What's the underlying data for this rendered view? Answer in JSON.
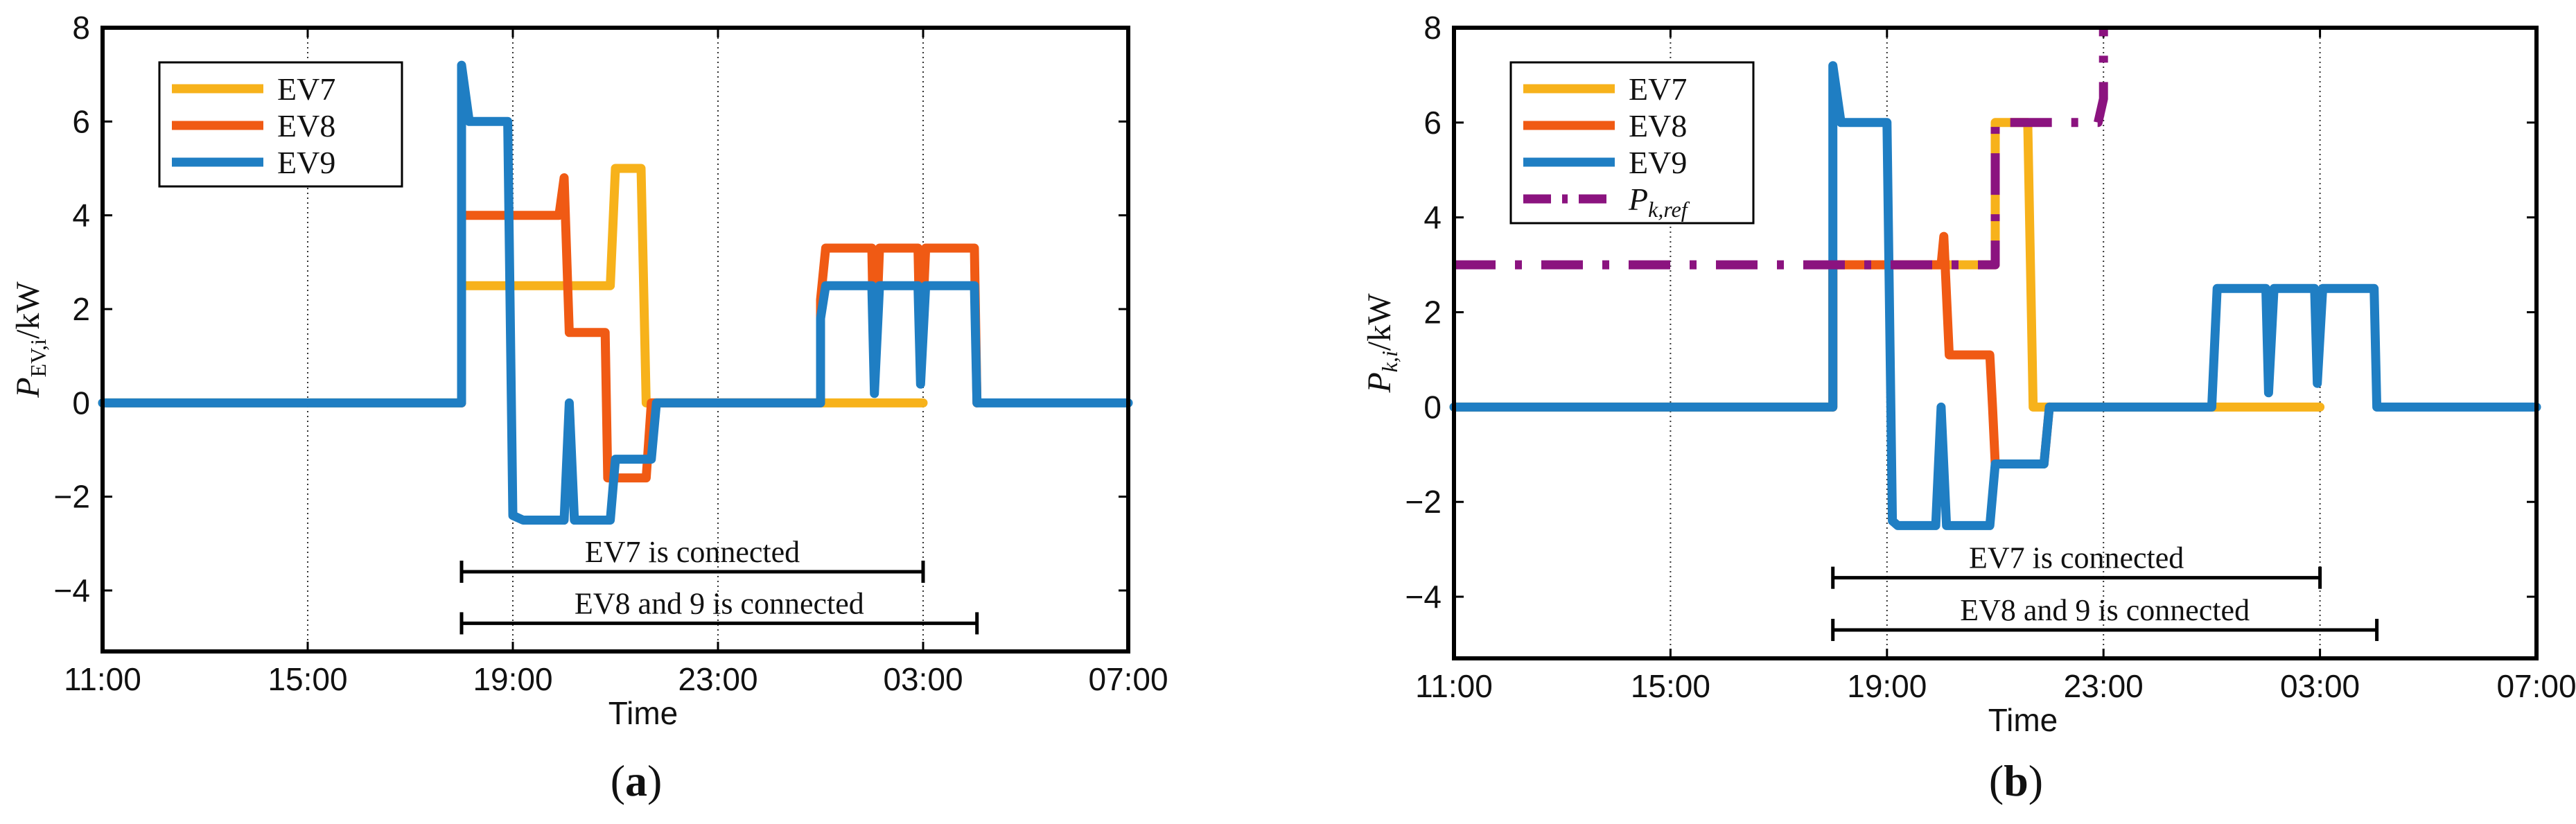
{
  "chart_data": [
    {
      "type": "line",
      "panel_label": "(a)",
      "panel_letter": "a",
      "xlabel": "Time",
      "ylabel_main": "P",
      "ylabel_sub": "EV,i",
      "ylabel_unit": "/kW",
      "xlim": [
        11,
        31
      ],
      "ylim": [
        -5.3,
        8
      ],
      "xticks": [
        11,
        15,
        19,
        23,
        27,
        31
      ],
      "xtick_labels": [
        "11:00",
        "15:00",
        "19:00",
        "23:00",
        "03:00",
        "07:00"
      ],
      "yticks": [
        -4,
        -2,
        0,
        2,
        4,
        6,
        8
      ],
      "ytick_labels": [
        "−4",
        "−2",
        "0",
        "2",
        "4",
        "6",
        "8"
      ],
      "grid_x": [
        15,
        19,
        23,
        27
      ],
      "legend_position": "top-left",
      "series": [
        {
          "name": "EV7",
          "color": "#F7B21B",
          "dash": "solid",
          "points": [
            [
              11,
              0
            ],
            [
              18,
              0
            ],
            [
              18,
              2.5
            ],
            [
              20.9,
              2.5
            ],
            [
              21.0,
              5.0
            ],
            [
              21.5,
              5.0
            ],
            [
              21.6,
              0
            ],
            [
              27.0,
              0
            ]
          ]
        },
        {
          "name": "EV8",
          "color": "#F05A14",
          "dash": "solid",
          "points": [
            [
              18,
              0
            ],
            [
              18,
              4.0
            ],
            [
              19.9,
              4.0
            ],
            [
              20.0,
              4.8
            ],
            [
              20.1,
              1.5
            ],
            [
              20.8,
              1.5
            ],
            [
              20.85,
              -1.6
            ],
            [
              21.6,
              -1.6
            ],
            [
              21.7,
              0
            ],
            [
              25.0,
              0
            ],
            [
              25.0,
              2.2
            ],
            [
              25.1,
              3.3
            ],
            [
              26.0,
              3.3
            ],
            [
              26.05,
              0.5
            ],
            [
              26.15,
              3.3
            ],
            [
              26.9,
              3.3
            ],
            [
              26.95,
              0.8
            ],
            [
              27.05,
              3.3
            ],
            [
              28.0,
              3.3
            ],
            [
              28.05,
              0
            ]
          ]
        },
        {
          "name": "EV9",
          "color": "#1F7EC3",
          "dash": "solid",
          "points": [
            [
              11,
              0
            ],
            [
              18,
              0
            ],
            [
              18,
              7.2
            ],
            [
              18.15,
              6.0
            ],
            [
              18.9,
              6.0
            ],
            [
              19.0,
              -2.4
            ],
            [
              19.2,
              -2.5
            ],
            [
              20.0,
              -2.5
            ],
            [
              20.1,
              0
            ],
            [
              20.2,
              -2.5
            ],
            [
              20.9,
              -2.5
            ],
            [
              21.0,
              -1.2
            ],
            [
              21.7,
              -1.2
            ],
            [
              21.8,
              0
            ],
            [
              25.0,
              0
            ],
            [
              25.0,
              1.8
            ],
            [
              25.1,
              2.5
            ],
            [
              26.0,
              2.5
            ],
            [
              26.05,
              0.2
            ],
            [
              26.15,
              2.5
            ],
            [
              26.9,
              2.5
            ],
            [
              26.95,
              0.4
            ],
            [
              27.05,
              2.5
            ],
            [
              28.0,
              2.5
            ],
            [
              28.05,
              0
            ],
            [
              31,
              0
            ]
          ]
        }
      ],
      "intervals": [
        {
          "label": "EV7 is connected",
          "start": 18,
          "end": 27,
          "y": -3.6
        },
        {
          "label": "EV8 and 9 is connected",
          "start": 18,
          "end": 28.05,
          "y": -4.7
        }
      ]
    },
    {
      "type": "line",
      "panel_label": "(b)",
      "panel_letter": "b",
      "xlabel": "Time",
      "ylabel_main": "P",
      "ylabel_sub": "k,i",
      "ylabel_unit": "/kW",
      "xlim": [
        11,
        31
      ],
      "ylim": [
        -5.3,
        8
      ],
      "xticks": [
        11,
        15,
        19,
        23,
        27,
        31
      ],
      "xtick_labels": [
        "11:00",
        "15:00",
        "19:00",
        "23:00",
        "03:00",
        "07:00"
      ],
      "yticks": [
        -4,
        -2,
        0,
        2,
        4,
        6,
        8
      ],
      "ytick_labels": [
        "−4",
        "−2",
        "0",
        "2",
        "4",
        "6",
        "8"
      ],
      "grid_x": [
        15,
        19,
        23,
        27
      ],
      "legend_position": "top-left",
      "series": [
        {
          "name": "EV7",
          "color": "#F7B21B",
          "dash": "solid",
          "points": [
            [
              11,
              0
            ],
            [
              18,
              0
            ],
            [
              18,
              3.0
            ],
            [
              21.0,
              3.0
            ],
            [
              21.0,
              6.0
            ],
            [
              21.6,
              6.0
            ],
            [
              21.7,
              0
            ],
            [
              27.0,
              0
            ]
          ]
        },
        {
          "name": "EV8",
          "color": "#F05A14",
          "dash": "solid",
          "points": [
            [
              18,
              0
            ],
            [
              18,
              3.0
            ],
            [
              20.0,
              3.0
            ],
            [
              20.05,
              3.6
            ],
            [
              20.15,
              1.1
            ],
            [
              20.9,
              1.1
            ],
            [
              20.95,
              0
            ],
            [
              21.0,
              -1.2
            ],
            [
              21.9,
              -1.2
            ],
            [
              22.0,
              0
            ]
          ]
        },
        {
          "name": "EV9",
          "color": "#1F7EC3",
          "dash": "solid",
          "points": [
            [
              11,
              0
            ],
            [
              18,
              0
            ],
            [
              18,
              7.2
            ],
            [
              18.15,
              6.0
            ],
            [
              19.0,
              6.0
            ],
            [
              19.1,
              -2.4
            ],
            [
              19.2,
              -2.5
            ],
            [
              19.9,
              -2.5
            ],
            [
              20.0,
              0
            ],
            [
              20.1,
              -2.5
            ],
            [
              20.9,
              -2.5
            ],
            [
              21.0,
              -1.2
            ],
            [
              21.9,
              -1.2
            ],
            [
              22.0,
              0
            ],
            [
              25.0,
              0
            ],
            [
              25.1,
              2.5
            ],
            [
              26.0,
              2.5
            ],
            [
              26.05,
              0.3
            ],
            [
              26.15,
              2.5
            ],
            [
              26.9,
              2.5
            ],
            [
              26.95,
              0.5
            ],
            [
              27.05,
              2.5
            ],
            [
              28.0,
              2.5
            ],
            [
              28.05,
              0
            ],
            [
              31,
              0
            ]
          ]
        },
        {
          "name_main": "P",
          "name_sub": "k,ref",
          "color": "#8B137F",
          "dash": "dashdot",
          "points": [
            [
              11,
              3.0
            ],
            [
              21.0,
              3.0
            ],
            [
              21.0,
              6.0
            ],
            [
              22.9,
              6.0
            ],
            [
              23.0,
              6.5
            ],
            [
              23.0,
              8.0
            ]
          ]
        }
      ],
      "intervals": [
        {
          "label": "EV7 is connected",
          "start": 18,
          "end": 27,
          "y": -3.6
        },
        {
          "label": "EV8 and 9 is connected",
          "start": 18,
          "end": 28.05,
          "y": -4.7
        }
      ]
    }
  ]
}
